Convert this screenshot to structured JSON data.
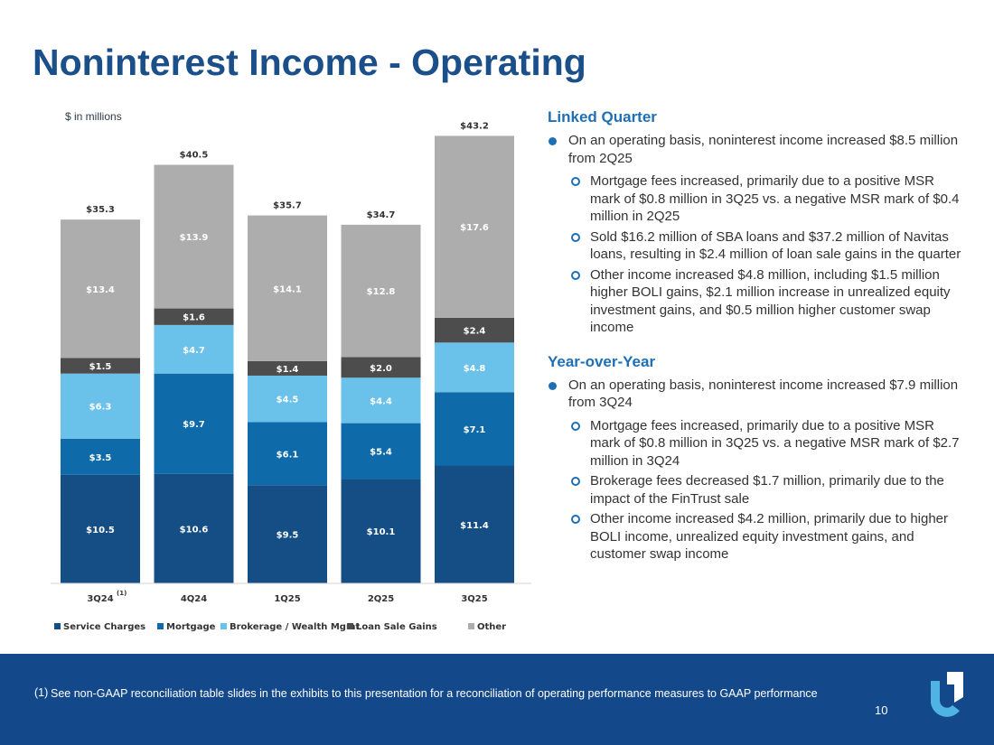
{
  "title": "Noninterest Income - Operating",
  "units_label": "$ in millions",
  "chart_data": {
    "type": "bar",
    "stacked": true,
    "categories": [
      "3Q24",
      "4Q24",
      "1Q25",
      "2Q25",
      "3Q25"
    ],
    "category_notes": [
      "(1)",
      "",
      "",
      "",
      ""
    ],
    "series": [
      {
        "name": "Service Charges",
        "color": "#144e84",
        "values": [
          10.5,
          10.6,
          9.5,
          10.1,
          11.4
        ],
        "labels": [
          "$10.5",
          "$10.6",
          "$9.5",
          "$10.1",
          "$11.4"
        ]
      },
      {
        "name": "Mortgage",
        "color": "#0e6aa8",
        "values": [
          3.5,
          9.7,
          6.1,
          5.4,
          7.1
        ],
        "labels": [
          "$3.5",
          "$9.7",
          "$6.1",
          "$5.4",
          "$7.1"
        ]
      },
      {
        "name": "Brokerage / Wealth Mgmt",
        "color": "#6ac1e9",
        "values": [
          6.3,
          4.7,
          4.5,
          4.4,
          4.8
        ],
        "labels": [
          "$6.3",
          "$4.7",
          "$4.5",
          "$4.4",
          "$4.8"
        ]
      },
      {
        "name": "Loan Sale Gains",
        "color": "#4d4d4d",
        "values": [
          1.5,
          1.6,
          1.4,
          2.0,
          2.4
        ],
        "labels": [
          "$1.5",
          "$1.6",
          "$1.4",
          "$2.0",
          "$2.4"
        ]
      },
      {
        "name": "Other",
        "color": "#adadad",
        "values": [
          13.4,
          13.9,
          14.1,
          12.8,
          17.6
        ],
        "labels": [
          "$13.4",
          "$13.9",
          "$14.1",
          "$12.8",
          "$17.6"
        ]
      }
    ],
    "totals": [
      35.3,
      40.5,
      35.7,
      34.7,
      43.2
    ],
    "total_labels": [
      "$35.3",
      "$40.5",
      "$35.7",
      "$34.7",
      "$43.2"
    ],
    "ylim": [
      0,
      45
    ],
    "grid": false,
    "legend": "bottom"
  },
  "linked_quarter": {
    "heading": "Linked Quarter",
    "main": "On an operating basis, noninterest income increased $8.5 million from 2Q25",
    "subs": [
      "Mortgage fees increased, primarily due to a positive MSR mark of $0.8 million in 3Q25 vs. a negative MSR mark of $0.4 million in 2Q25",
      "Sold $16.2 million of SBA loans and $37.2 million of Navitas loans, resulting in $2.4 million of loan sale gains in the quarter",
      "Other income increased $4.8 million, including $1.5 million higher BOLI gains, $2.1 million increase in unrealized equity investment gains, and $0.5 million higher customer swap income"
    ]
  },
  "year_over_year": {
    "heading": "Year-over-Year",
    "main": "On an operating basis, noninterest income increased $7.9 million from 3Q24",
    "subs": [
      "Mortgage fees increased, primarily due to a positive MSR mark of $0.8 million in 3Q25 vs. a negative MSR mark of $2.7 million in 3Q24",
      "Brokerage fees decreased $1.7 million, primarily due to the impact of the FinTrust sale",
      "Other income increased $4.2 million, primarily due to higher BOLI income, unrealized equity investment gains, and customer swap income"
    ]
  },
  "footnote": {
    "marker": "(1)",
    "text": "See non-GAAP reconciliation table slides in the exhibits to this presentation for a reconciliation of operating performance measures to GAAP performance"
  },
  "page_number": "10",
  "colors": {
    "title": "#1b4f8a",
    "heading": "#1e6fb4",
    "footer": "#13498a",
    "logo_light": "#4fb3e3"
  }
}
